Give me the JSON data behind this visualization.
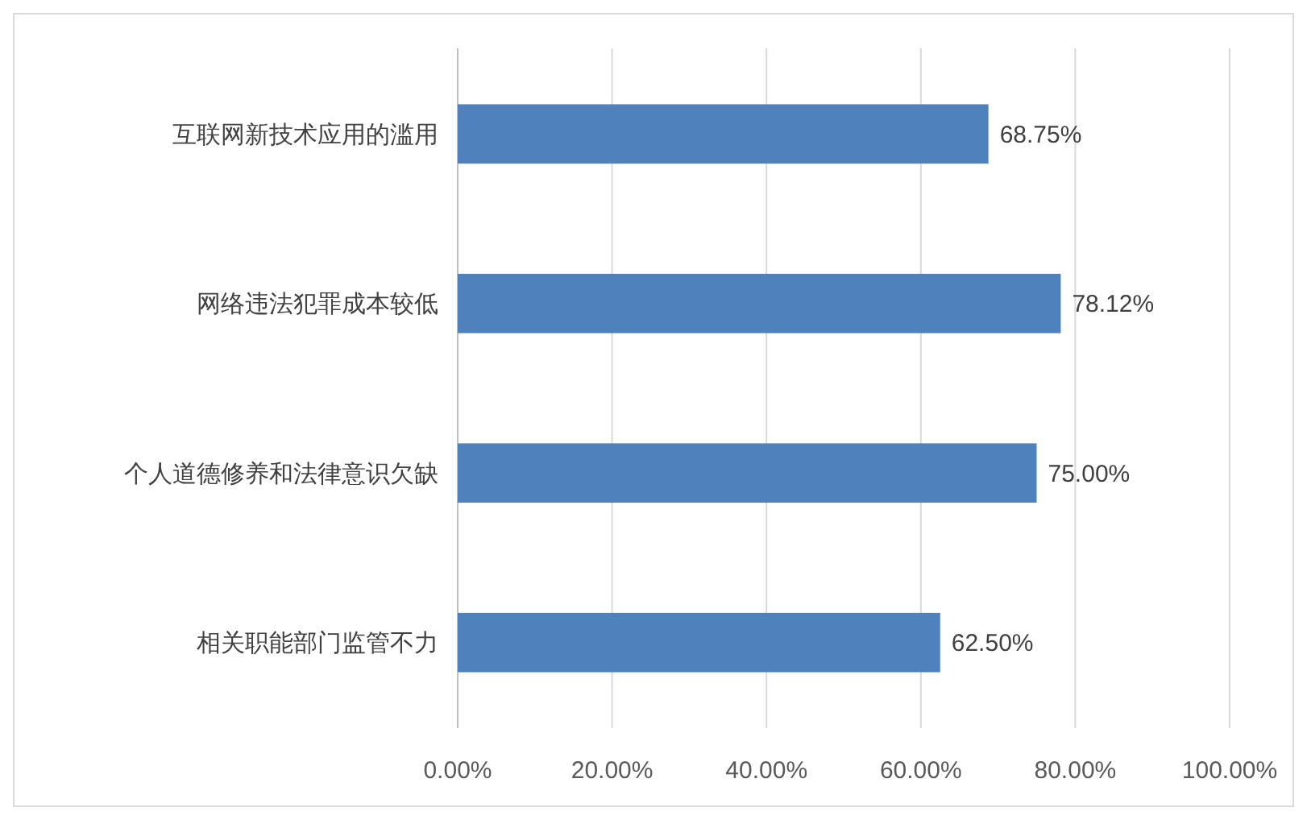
{
  "chart_data": {
    "type": "bar",
    "orientation": "horizontal",
    "categories": [
      "互联网新技术应用的滥用",
      "网络违法犯罪成本较低",
      "个人道德修养和法律意识欠缺",
      "相关职能部门监管不力"
    ],
    "values": [
      68.75,
      78.12,
      75.0,
      62.5
    ],
    "value_labels": [
      "68.75%",
      "78.12%",
      "75.00%",
      "62.50%"
    ],
    "color": "#4f81bd",
    "xlim": [
      0,
      100
    ],
    "xticks": [
      {
        "value": 0,
        "label": "0.00%"
      },
      {
        "value": 20,
        "label": "20.00%"
      },
      {
        "value": 40,
        "label": "40.00%"
      },
      {
        "value": 60,
        "label": "60.00%"
      },
      {
        "value": 80,
        "label": "80.00%"
      },
      {
        "value": 100,
        "label": "100.00%"
      }
    ],
    "grid": "x"
  }
}
